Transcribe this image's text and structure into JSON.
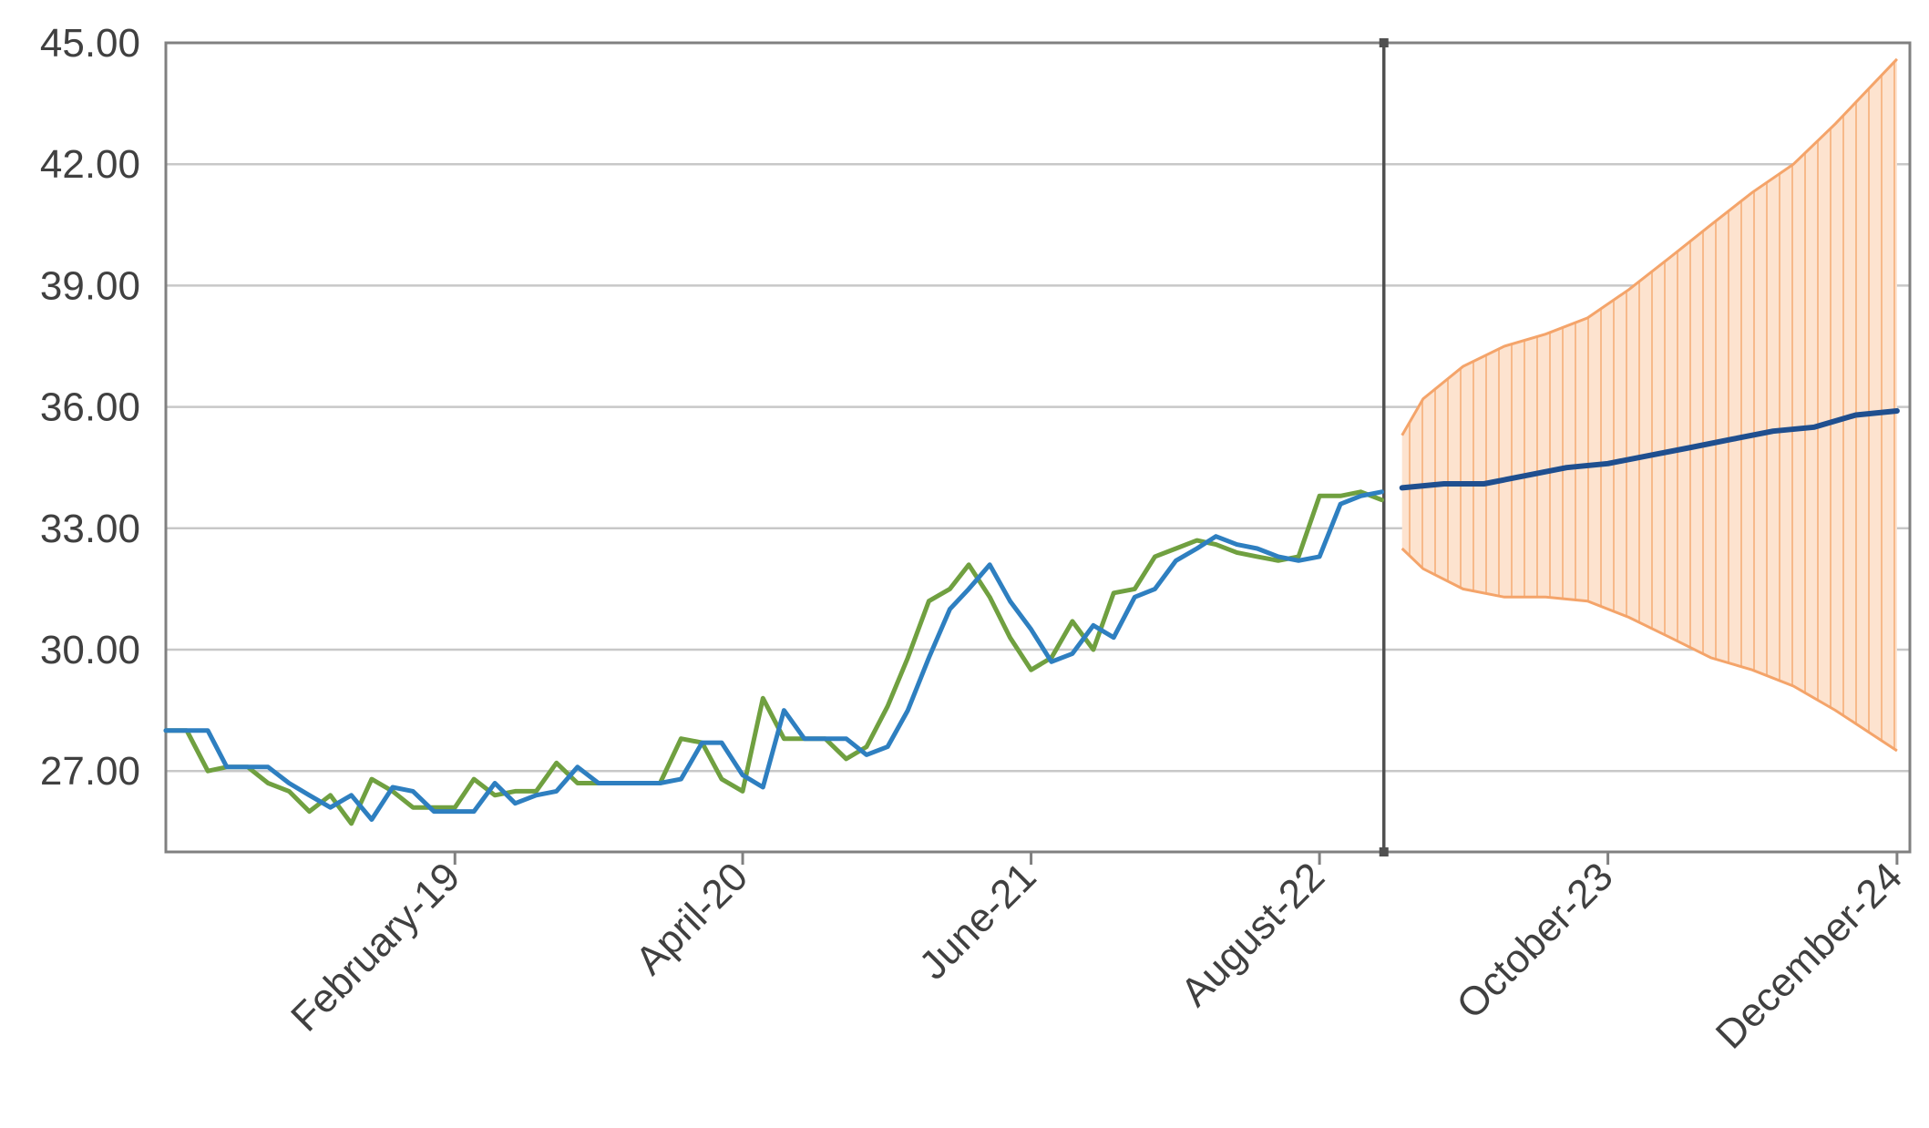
{
  "chart_data": {
    "type": "line",
    "title": "",
    "xlabel": "",
    "ylabel": "",
    "ylim": [
      25.0,
      45.0
    ],
    "y_ticks": [
      27.0,
      30.0,
      33.0,
      36.0,
      39.0,
      42.0,
      45.0
    ],
    "y_tick_labels": [
      "27.00",
      "30.00",
      "33.00",
      "36.00",
      "39.00",
      "42.00",
      "45.00"
    ],
    "x_tick_labels": [
      "February-19",
      "April-20",
      "June-21",
      "August-22",
      "October-23",
      "December-24"
    ],
    "x_tick_dates": [
      "2019-02-01",
      "2020-04-01",
      "2021-06-01",
      "2022-08-01",
      "2023-10-01",
      "2024-12-01"
    ],
    "xlim": [
      "2017-12-01",
      "2024-12-20"
    ],
    "forecast_start": "2022-12-01",
    "grid": true,
    "legend": "none",
    "series": [
      {
        "role": "actual",
        "color": "#70a040",
        "points": [
          [
            "2017-12-01",
            28.0
          ],
          [
            "2018-01-01",
            28.0
          ],
          [
            "2018-02-01",
            27.0
          ],
          [
            "2018-03-01",
            27.1
          ],
          [
            "2018-04-01",
            27.1
          ],
          [
            "2018-05-01",
            26.7
          ],
          [
            "2018-06-01",
            26.5
          ],
          [
            "2018-07-01",
            26.0
          ],
          [
            "2018-08-01",
            26.4
          ],
          [
            "2018-09-01",
            25.7
          ],
          [
            "2018-10-01",
            26.8
          ],
          [
            "2018-11-01",
            26.5
          ],
          [
            "2018-12-01",
            26.1
          ],
          [
            "2019-01-01",
            26.1
          ],
          [
            "2019-02-01",
            26.1
          ],
          [
            "2019-03-01",
            26.8
          ],
          [
            "2019-04-01",
            26.4
          ],
          [
            "2019-05-01",
            26.5
          ],
          [
            "2019-06-01",
            26.5
          ],
          [
            "2019-07-01",
            27.2
          ],
          [
            "2019-08-01",
            26.7
          ],
          [
            "2019-09-01",
            26.7
          ],
          [
            "2019-10-01",
            26.7
          ],
          [
            "2019-11-01",
            26.7
          ],
          [
            "2019-12-01",
            26.7
          ],
          [
            "2020-01-01",
            27.8
          ],
          [
            "2020-02-01",
            27.7
          ],
          [
            "2020-03-01",
            26.8
          ],
          [
            "2020-04-01",
            26.5
          ],
          [
            "2020-05-01",
            28.8
          ],
          [
            "2020-06-01",
            27.8
          ],
          [
            "2020-07-01",
            27.8
          ],
          [
            "2020-08-01",
            27.8
          ],
          [
            "2020-09-01",
            27.3
          ],
          [
            "2020-10-01",
            27.6
          ],
          [
            "2020-11-01",
            28.6
          ],
          [
            "2020-12-01",
            29.8
          ],
          [
            "2021-01-01",
            31.2
          ],
          [
            "2021-02-01",
            31.5
          ],
          [
            "2021-03-01",
            32.1
          ],
          [
            "2021-04-01",
            31.3
          ],
          [
            "2021-05-01",
            30.3
          ],
          [
            "2021-06-01",
            29.5
          ],
          [
            "2021-07-01",
            29.8
          ],
          [
            "2021-08-01",
            30.7
          ],
          [
            "2021-09-01",
            30.0
          ],
          [
            "2021-10-01",
            31.4
          ],
          [
            "2021-11-01",
            31.5
          ],
          [
            "2021-12-01",
            32.3
          ],
          [
            "2022-01-01",
            32.5
          ],
          [
            "2022-02-01",
            32.7
          ],
          [
            "2022-03-01",
            32.6
          ],
          [
            "2022-04-01",
            32.4
          ],
          [
            "2022-05-01",
            32.3
          ],
          [
            "2022-06-01",
            32.2
          ],
          [
            "2022-07-01",
            32.3
          ],
          [
            "2022-08-01",
            33.8
          ],
          [
            "2022-09-01",
            33.8
          ],
          [
            "2022-10-01",
            33.9
          ],
          [
            "2022-11-01",
            33.7
          ]
        ]
      },
      {
        "role": "fitted",
        "color": "#2e7fc0",
        "points": [
          [
            "2017-12-01",
            28.0
          ],
          [
            "2018-01-01",
            28.0
          ],
          [
            "2018-02-01",
            28.0
          ],
          [
            "2018-03-01",
            27.1
          ],
          [
            "2018-04-01",
            27.1
          ],
          [
            "2018-05-01",
            27.1
          ],
          [
            "2018-06-01",
            26.7
          ],
          [
            "2018-07-01",
            26.4
          ],
          [
            "2018-08-01",
            26.1
          ],
          [
            "2018-09-01",
            26.4
          ],
          [
            "2018-10-01",
            25.8
          ],
          [
            "2018-11-01",
            26.6
          ],
          [
            "2018-12-01",
            26.5
          ],
          [
            "2019-01-01",
            26.0
          ],
          [
            "2019-02-01",
            26.0
          ],
          [
            "2019-03-01",
            26.0
          ],
          [
            "2019-04-01",
            26.7
          ],
          [
            "2019-05-01",
            26.2
          ],
          [
            "2019-06-01",
            26.4
          ],
          [
            "2019-07-01",
            26.5
          ],
          [
            "2019-08-01",
            27.1
          ],
          [
            "2019-09-01",
            26.7
          ],
          [
            "2019-10-01",
            26.7
          ],
          [
            "2019-11-01",
            26.7
          ],
          [
            "2019-12-01",
            26.7
          ],
          [
            "2020-01-01",
            26.8
          ],
          [
            "2020-02-01",
            27.7
          ],
          [
            "2020-03-01",
            27.7
          ],
          [
            "2020-04-01",
            26.9
          ],
          [
            "2020-05-01",
            26.6
          ],
          [
            "2020-06-01",
            28.5
          ],
          [
            "2020-07-01",
            27.8
          ],
          [
            "2020-08-01",
            27.8
          ],
          [
            "2020-09-01",
            27.8
          ],
          [
            "2020-10-01",
            27.4
          ],
          [
            "2020-11-01",
            27.6
          ],
          [
            "2020-12-01",
            28.5
          ],
          [
            "2021-01-01",
            29.8
          ],
          [
            "2021-02-01",
            31.0
          ],
          [
            "2021-03-01",
            31.5
          ],
          [
            "2021-04-01",
            32.1
          ],
          [
            "2021-05-01",
            31.2
          ],
          [
            "2021-06-01",
            30.5
          ],
          [
            "2021-07-01",
            29.7
          ],
          [
            "2021-08-01",
            29.9
          ],
          [
            "2021-09-01",
            30.6
          ],
          [
            "2021-10-01",
            30.3
          ],
          [
            "2021-11-01",
            31.3
          ],
          [
            "2021-12-01",
            31.5
          ],
          [
            "2022-01-01",
            32.2
          ],
          [
            "2022-02-01",
            32.5
          ],
          [
            "2022-03-01",
            32.8
          ],
          [
            "2022-04-01",
            32.6
          ],
          [
            "2022-05-01",
            32.5
          ],
          [
            "2022-06-01",
            32.3
          ],
          [
            "2022-07-01",
            32.2
          ],
          [
            "2022-08-01",
            32.3
          ],
          [
            "2022-09-01",
            33.6
          ],
          [
            "2022-10-01",
            33.8
          ],
          [
            "2022-11-01",
            33.9
          ]
        ]
      },
      {
        "role": "forecast",
        "color": "#1f4f8f",
        "points": [
          [
            "2022-12-01",
            34.0
          ],
          [
            "2023-02-01",
            34.1
          ],
          [
            "2023-04-01",
            34.1
          ],
          [
            "2023-06-01",
            34.3
          ],
          [
            "2023-08-01",
            34.5
          ],
          [
            "2023-10-01",
            34.6
          ],
          [
            "2023-12-01",
            34.8
          ],
          [
            "2024-02-01",
            35.0
          ],
          [
            "2024-04-01",
            35.2
          ],
          [
            "2024-06-01",
            35.4
          ],
          [
            "2024-08-01",
            35.5
          ],
          [
            "2024-10-01",
            35.8
          ],
          [
            "2024-12-01",
            35.9
          ]
        ]
      }
    ],
    "forecast_band": {
      "fill": "#fde3cf",
      "stroke": "#f4a46a",
      "upper": [
        [
          "2022-12-01",
          35.3
        ],
        [
          "2023-01-01",
          36.2
        ],
        [
          "2023-03-01",
          37.0
        ],
        [
          "2023-05-01",
          37.5
        ],
        [
          "2023-07-01",
          37.8
        ],
        [
          "2023-09-01",
          38.2
        ],
        [
          "2023-11-01",
          38.9
        ],
        [
          "2024-01-01",
          39.7
        ],
        [
          "2024-03-01",
          40.5
        ],
        [
          "2024-05-01",
          41.3
        ],
        [
          "2024-07-01",
          42.0
        ],
        [
          "2024-09-01",
          43.0
        ],
        [
          "2024-12-01",
          44.6
        ]
      ],
      "lower": [
        [
          "2022-12-01",
          32.5
        ],
        [
          "2023-01-01",
          32.0
        ],
        [
          "2023-03-01",
          31.5
        ],
        [
          "2023-05-01",
          31.3
        ],
        [
          "2023-07-01",
          31.3
        ],
        [
          "2023-09-01",
          31.2
        ],
        [
          "2023-11-01",
          30.8
        ],
        [
          "2024-01-01",
          30.3
        ],
        [
          "2024-03-01",
          29.8
        ],
        [
          "2024-05-01",
          29.5
        ],
        [
          "2024-07-01",
          29.1
        ],
        [
          "2024-09-01",
          28.5
        ],
        [
          "2024-12-01",
          27.5
        ]
      ]
    },
    "colors": {
      "grid": "#c8c8c8",
      "axis": "#808080",
      "divider": "#505050",
      "tick_label": "#404040"
    }
  }
}
